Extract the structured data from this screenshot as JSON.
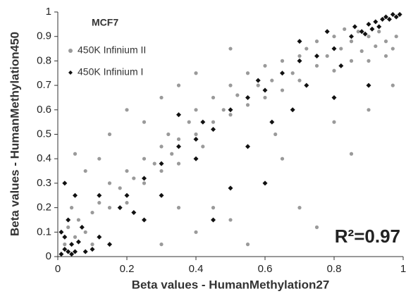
{
  "chart_data": {
    "type": "scatter",
    "xlabel": "Beta values - HumanMethylation27",
    "ylabel": "Beta values - HumanMethylation450",
    "legend_title": "MCF7",
    "annotation": "R²=0.97",
    "legend": "upper left",
    "xlim": [
      0,
      1
    ],
    "ylim": [
      0,
      1
    ],
    "xticks": [
      0,
      0.2,
      0.4,
      0.6,
      0.8,
      1
    ],
    "yticks": [
      0,
      0.1,
      0.2,
      0.3,
      0.4,
      0.5,
      0.6,
      0.7,
      0.8,
      0.9,
      1
    ],
    "series": [
      {
        "name": "450K Infinium II",
        "color": "#9a9a9a",
        "marker": "circle",
        "x": [
          0.02,
          0.03,
          0.05,
          0.04,
          0.06,
          0.08,
          0.1,
          0.12,
          0.1,
          0.15,
          0.15,
          0.18,
          0.2,
          0.2,
          0.22,
          0.25,
          0.25,
          0.28,
          0.3,
          0.3,
          0.32,
          0.33,
          0.35,
          0.35,
          0.38,
          0.4,
          0.4,
          0.42,
          0.45,
          0.45,
          0.48,
          0.5,
          0.5,
          0.52,
          0.55,
          0.55,
          0.58,
          0.6,
          0.6,
          0.62,
          0.65,
          0.65,
          0.68,
          0.7,
          0.7,
          0.72,
          0.75,
          0.75,
          0.78,
          0.8,
          0.8,
          0.82,
          0.85,
          0.85,
          0.88,
          0.9,
          0.9,
          0.92,
          0.95,
          0.95,
          0.97,
          0.98,
          0.93,
          0.87,
          0.83,
          0.2,
          0.15,
          0.3,
          0.25,
          0.45,
          0.6,
          0.7,
          0.55,
          0.75,
          0.85,
          0.5,
          0.4,
          0.3,
          0.35,
          0.65,
          0.8,
          0.9,
          0.97,
          0.63,
          0.08,
          0.05,
          0.12,
          0.4,
          0.5,
          0.35
        ],
        "y": [
          0.05,
          0.12,
          0.08,
          0.2,
          0.15,
          0.1,
          0.18,
          0.22,
          0.05,
          0.2,
          0.3,
          0.28,
          0.35,
          0.22,
          0.32,
          0.4,
          0.3,
          0.38,
          0.45,
          0.35,
          0.5,
          0.42,
          0.48,
          0.38,
          0.55,
          0.5,
          0.6,
          0.45,
          0.55,
          0.65,
          0.6,
          0.58,
          0.7,
          0.66,
          0.62,
          0.75,
          0.7,
          0.65,
          0.78,
          0.72,
          0.8,
          0.68,
          0.75,
          0.82,
          0.72,
          0.85,
          0.78,
          0.88,
          0.82,
          0.9,
          0.76,
          0.85,
          0.88,
          0.8,
          0.84,
          0.9,
          0.8,
          0.86,
          0.88,
          0.82,
          0.85,
          0.9,
          0.92,
          0.92,
          0.93,
          0.6,
          0.5,
          0.65,
          0.55,
          0.2,
          0.3,
          0.2,
          0.05,
          0.12,
          0.42,
          0.15,
          0.1,
          0.05,
          0.2,
          0.4,
          0.55,
          0.6,
          0.7,
          0.5,
          0.35,
          0.42,
          0.4,
          0.75,
          0.85,
          0.7
        ]
      },
      {
        "name": "450K Infinium I",
        "color": "#111111",
        "marker": "diamond",
        "x": [
          0.01,
          0.02,
          0.03,
          0.04,
          0.02,
          0.05,
          0.06,
          0.01,
          0.03,
          0.02,
          0.05,
          0.07,
          0.1,
          0.08,
          0.12,
          0.15,
          0.04,
          0.2,
          0.25,
          0.3,
          0.35,
          0.4,
          0.42,
          0.45,
          0.5,
          0.55,
          0.58,
          0.6,
          0.65,
          0.7,
          0.72,
          0.75,
          0.8,
          0.82,
          0.85,
          0.88,
          0.9,
          0.92,
          0.94,
          0.95,
          0.96,
          0.97,
          0.98,
          0.99,
          0.93,
          0.91,
          0.89,
          0.86,
          0.78,
          0.7,
          0.62,
          0.55,
          0.68,
          0.8,
          0.9,
          0.6,
          0.5,
          0.45,
          0.22,
          0.18,
          0.12,
          0.35,
          0.4,
          0.3,
          0.25
        ],
        "y": [
          0.01,
          0.03,
          0.02,
          0.05,
          0.08,
          0.02,
          0.06,
          0.1,
          0.15,
          0.3,
          0.25,
          0.12,
          0.03,
          0.02,
          0.08,
          0.05,
          0.01,
          0.25,
          0.32,
          0.38,
          0.45,
          0.48,
          0.55,
          0.52,
          0.6,
          0.65,
          0.72,
          0.68,
          0.75,
          0.8,
          0.7,
          0.82,
          0.85,
          0.78,
          0.9,
          0.92,
          0.95,
          0.96,
          0.97,
          0.98,
          0.97,
          0.99,
          0.98,
          0.99,
          0.94,
          0.93,
          0.91,
          0.94,
          0.92,
          0.88,
          0.55,
          0.45,
          0.6,
          0.65,
          0.7,
          0.3,
          0.28,
          0.15,
          0.18,
          0.2,
          0.25,
          0.58,
          0.4,
          0.25,
          0.15
        ]
      }
    ]
  }
}
